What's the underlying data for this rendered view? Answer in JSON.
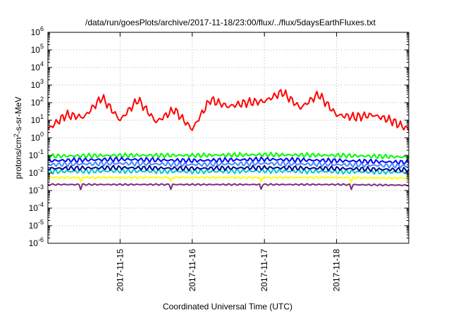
{
  "chart_data": {
    "type": "line",
    "title": "/data/run/goesPlots/archive/2017-11-18/23:00/flux/../flux/5daysEarthFluxes.txt",
    "xlabel": "Coordinated Universal Time (UTC)",
    "ylabel": {
      "base": "protons/cm",
      "sup": "2",
      "rest": "-s-sr-MeV"
    },
    "x_range_days": [
      "2017-11-14",
      "2017-11-19"
    ],
    "x_ticks": [
      "2017-11-15",
      "2017-11-16",
      "2017-11-17",
      "2017-11-18"
    ],
    "y_scale": "log",
    "ylim": [
      1e-06,
      1000000.0
    ],
    "y_ticks": [
      {
        "base": "10",
        "exp": "-6"
      },
      {
        "base": "10",
        "exp": "-5"
      },
      {
        "base": "10",
        "exp": "-4"
      },
      {
        "base": "10",
        "exp": "-3"
      },
      {
        "base": "10",
        "exp": "-2"
      },
      {
        "base": "10",
        "exp": "-1"
      },
      {
        "base": "10",
        "exp": "0"
      },
      {
        "base": "10",
        "exp": "1"
      },
      {
        "base": "10",
        "exp": "2"
      },
      {
        "base": "10",
        "exp": "3"
      },
      {
        "base": "10",
        "exp": "4"
      },
      {
        "base": "10",
        "exp": "5"
      },
      {
        "base": "10",
        "exp": "6"
      }
    ],
    "grid": true,
    "series": [
      {
        "color": "#ff0000",
        "x": [
          "2017-11-14 00:00",
          "2017-11-14 06:00",
          "2017-11-14 12:00",
          "2017-11-14 18:00",
          "2017-11-15 00:00",
          "2017-11-15 06:00",
          "2017-11-15 12:00",
          "2017-11-15 18:00",
          "2017-11-16 00:00",
          "2017-11-16 06:00",
          "2017-11-16 12:00",
          "2017-11-16 18:00",
          "2017-11-17 00:00",
          "2017-11-17 06:00",
          "2017-11-17 12:00",
          "2017-11-17 18:00",
          "2017-11-18 00:00",
          "2017-11-18 06:00",
          "2017-11-18 12:00",
          "2017-11-18 18:00",
          "2017-11-19 00:00"
        ],
        "values": [
          3,
          20,
          15,
          200,
          10,
          150,
          8,
          40,
          3,
          150,
          60,
          100,
          120,
          400,
          50,
          300,
          20,
          15,
          20,
          10,
          3
        ]
      },
      {
        "color": "#00ff00",
        "x": [
          "2017-11-14 00:00",
          "2017-11-15 00:00",
          "2017-11-16 00:00",
          "2017-11-17 00:00",
          "2017-11-18 00:00",
          "2017-11-19 00:00"
        ],
        "values": [
          0.09,
          0.1,
          0.1,
          0.11,
          0.1,
          0.08
        ]
      },
      {
        "color": "#0000ff",
        "x": [
          "2017-11-14 00:00",
          "2017-11-15 00:00",
          "2017-11-16 00:00",
          "2017-11-17 00:00",
          "2017-11-18 00:00",
          "2017-11-19 00:00"
        ],
        "values": [
          0.05,
          0.06,
          0.05,
          0.06,
          0.05,
          0.04
        ]
      },
      {
        "color": "#4488ff",
        "x": [
          "2017-11-14 00:00",
          "2017-11-15 00:00",
          "2017-11-16 00:00",
          "2017-11-17 00:00",
          "2017-11-18 00:00",
          "2017-11-19 00:00"
        ],
        "values": [
          0.03,
          0.035,
          0.03,
          0.035,
          0.03,
          0.025
        ]
      },
      {
        "color": "#00c8c8",
        "x": [
          "2017-11-14 00:00",
          "2017-11-15 00:00",
          "2017-11-16 00:00",
          "2017-11-17 00:00",
          "2017-11-18 00:00",
          "2017-11-19 00:00"
        ],
        "values": [
          0.012,
          0.013,
          0.012,
          0.013,
          0.012,
          0.011
        ]
      },
      {
        "color": "#00008b",
        "x": [
          "2017-11-14 00:00",
          "2017-11-15 00:00",
          "2017-11-16 00:00",
          "2017-11-17 00:00",
          "2017-11-18 00:00",
          "2017-11-19 00:00"
        ],
        "values": [
          0.018,
          0.02,
          0.018,
          0.02,
          0.018,
          0.015
        ]
      },
      {
        "color": "#ffff00",
        "x": [
          "2017-11-14 00:00",
          "2017-11-15 00:00",
          "2017-11-16 00:00",
          "2017-11-17 00:00",
          "2017-11-18 00:00",
          "2017-11-19 00:00"
        ],
        "values": [
          0.0055,
          0.0055,
          0.0055,
          0.0055,
          0.0055,
          0.005
        ]
      },
      {
        "color": "#7f2a7f",
        "x": [
          "2017-11-14 00:00",
          "2017-11-15 00:00",
          "2017-11-16 00:00",
          "2017-11-17 00:00",
          "2017-11-18 00:00",
          "2017-11-19 00:00"
        ],
        "values": [
          0.0022,
          0.0022,
          0.0022,
          0.0022,
          0.0022,
          0.002
        ]
      }
    ]
  }
}
